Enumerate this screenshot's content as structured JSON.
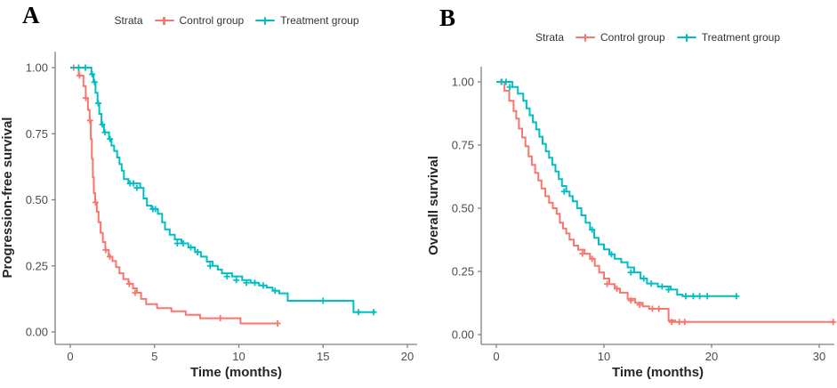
{
  "colors": {
    "control": "#F8766D",
    "treatment": "#00BFC4",
    "axis_line": "#808080",
    "tick_text": "#4d4d4d",
    "axis_title_text": "#262626"
  },
  "panels": [
    {
      "label": "A",
      "legend": {
        "title": "Strata",
        "items": [
          {
            "label": "Control group",
            "color_key": "control"
          },
          {
            "label": "Treatment group",
            "color_key": "treatment"
          }
        ]
      }
    },
    {
      "label": "B",
      "legend": {
        "title": "Strata",
        "items": [
          {
            "label": "Control group",
            "color_key": "control"
          },
          {
            "label": "Treatment group",
            "color_key": "treatment"
          }
        ]
      }
    }
  ],
  "chart_data": [
    {
      "type": "line",
      "subtype": "kaplan-meier-step",
      "panel": "A",
      "title": "",
      "xlabel": "Time (months)",
      "ylabel": "Progression-free survival",
      "xlim": [
        0,
        20
      ],
      "ylim": [
        0,
        1.0
      ],
      "xticks": [
        0,
        5,
        10,
        15,
        20
      ],
      "xtick_labels": [
        "0",
        "5",
        "10",
        "15",
        "20"
      ],
      "yticks": [
        0,
        0.25,
        0.5,
        0.75,
        1.0
      ],
      "ytick_labels": [
        "0.00",
        "0.25",
        "0.50",
        "0.75",
        "1.00"
      ],
      "grid": false,
      "legend_title": "Strata",
      "legend_position": "top",
      "series": [
        {
          "name": "Control group",
          "color": "#F8766D",
          "steps": [
            [
              0,
              1.0
            ],
            [
              0.5,
              0.97
            ],
            [
              0.78,
              0.93
            ],
            [
              0.92,
              0.885
            ],
            [
              1.05,
              0.84
            ],
            [
              1.15,
              0.8
            ],
            [
              1.22,
              0.73
            ],
            [
              1.28,
              0.655
            ],
            [
              1.34,
              0.585
            ],
            [
              1.4,
              0.525
            ],
            [
              1.48,
              0.49
            ],
            [
              1.58,
              0.455
            ],
            [
              1.68,
              0.415
            ],
            [
              1.8,
              0.375
            ],
            [
              1.93,
              0.34
            ],
            [
              2.08,
              0.31
            ],
            [
              2.28,
              0.285
            ],
            [
              2.5,
              0.268
            ],
            [
              2.72,
              0.245
            ],
            [
              2.92,
              0.222
            ],
            [
              3.15,
              0.2
            ],
            [
              3.45,
              0.182
            ],
            [
              3.72,
              0.165
            ],
            [
              3.95,
              0.148
            ],
            [
              4.2,
              0.125
            ],
            [
              4.5,
              0.105
            ],
            [
              5.15,
              0.09
            ],
            [
              6.0,
              0.078
            ],
            [
              6.85,
              0.065
            ],
            [
              7.7,
              0.052
            ],
            [
              10.1,
              0.032
            ],
            [
              12.35,
              0.032
            ]
          ],
          "censors": [
            [
              0.2,
              1.0
            ],
            [
              0.55,
              0.97
            ],
            [
              0.92,
              0.885
            ],
            [
              1.17,
              0.8
            ],
            [
              1.5,
              0.49
            ],
            [
              2.1,
              0.31
            ],
            [
              2.35,
              0.285
            ],
            [
              3.5,
              0.182
            ],
            [
              3.85,
              0.148
            ],
            [
              8.9,
              0.052
            ],
            [
              12.3,
              0.032
            ]
          ]
        },
        {
          "name": "Treatment group",
          "color": "#00BFC4",
          "steps": [
            [
              0,
              1.0
            ],
            [
              1.25,
              0.975
            ],
            [
              1.38,
              0.945
            ],
            [
              1.5,
              0.905
            ],
            [
              1.62,
              0.865
            ],
            [
              1.72,
              0.825
            ],
            [
              1.85,
              0.785
            ],
            [
              2.0,
              0.755
            ],
            [
              2.3,
              0.73
            ],
            [
              2.45,
              0.705
            ],
            [
              2.6,
              0.685
            ],
            [
              2.78,
              0.66
            ],
            [
              2.92,
              0.635
            ],
            [
              3.05,
              0.61
            ],
            [
              3.18,
              0.578
            ],
            [
              3.45,
              0.562
            ],
            [
              4.15,
              0.545
            ],
            [
              4.35,
              0.505
            ],
            [
              4.55,
              0.478
            ],
            [
              4.82,
              0.465
            ],
            [
              5.2,
              0.447
            ],
            [
              5.45,
              0.415
            ],
            [
              5.62,
              0.388
            ],
            [
              5.9,
              0.368
            ],
            [
              6.2,
              0.35
            ],
            [
              6.6,
              0.335
            ],
            [
              7.0,
              0.32
            ],
            [
              7.4,
              0.302
            ],
            [
              7.75,
              0.285
            ],
            [
              8.1,
              0.266
            ],
            [
              8.45,
              0.25
            ],
            [
              8.75,
              0.236
            ],
            [
              9.0,
              0.222
            ],
            [
              9.6,
              0.21
            ],
            [
              10.2,
              0.196
            ],
            [
              10.7,
              0.186
            ],
            [
              11.2,
              0.176
            ],
            [
              11.65,
              0.168
            ],
            [
              12.0,
              0.156
            ],
            [
              12.4,
              0.146
            ],
            [
              12.9,
              0.118
            ],
            [
              16.8,
              0.075
            ],
            [
              18.1,
              0.075
            ]
          ],
          "censors": [
            [
              0.5,
              1.0
            ],
            [
              0.9,
              1.0
            ],
            [
              1.3,
              0.975
            ],
            [
              1.44,
              0.945
            ],
            [
              1.66,
              0.865
            ],
            [
              1.9,
              0.785
            ],
            [
              2.06,
              0.755
            ],
            [
              2.36,
              0.73
            ],
            [
              3.55,
              0.562
            ],
            [
              3.75,
              0.562
            ],
            [
              3.95,
              0.545
            ],
            [
              4.9,
              0.465
            ],
            [
              5.05,
              0.465
            ],
            [
              6.35,
              0.335
            ],
            [
              6.7,
              0.335
            ],
            [
              7.15,
              0.32
            ],
            [
              7.55,
              0.302
            ],
            [
              8.3,
              0.25
            ],
            [
              9.3,
              0.21
            ],
            [
              9.85,
              0.196
            ],
            [
              10.45,
              0.186
            ],
            [
              10.95,
              0.186
            ],
            [
              11.45,
              0.176
            ],
            [
              12.15,
              0.156
            ],
            [
              15.0,
              0.118
            ],
            [
              17.1,
              0.075
            ],
            [
              18.0,
              0.075
            ]
          ]
        }
      ]
    },
    {
      "type": "line",
      "subtype": "kaplan-meier-step",
      "panel": "B",
      "title": "",
      "xlabel": "Time (months)",
      "ylabel": "Overall survival",
      "xlim": [
        0,
        31.5
      ],
      "ylim": [
        0,
        1.0
      ],
      "xticks": [
        0,
        10,
        20,
        30
      ],
      "xtick_labels": [
        "0",
        "10",
        "20",
        "30"
      ],
      "yticks": [
        0,
        0.25,
        0.5,
        0.75,
        1.0
      ],
      "ytick_labels": [
        "0.00",
        "0.25",
        "0.50",
        "0.75",
        "1.00"
      ],
      "grid": false,
      "legend_title": "Strata",
      "legend_position": "top",
      "series": [
        {
          "name": "Control group",
          "color": "#F8766D",
          "steps": [
            [
              0,
              1.0
            ],
            [
              0.75,
              0.965
            ],
            [
              1.2,
              0.925
            ],
            [
              1.6,
              0.885
            ],
            [
              1.85,
              0.855
            ],
            [
              2.1,
              0.815
            ],
            [
              2.4,
              0.78
            ],
            [
              2.7,
              0.745
            ],
            [
              3.0,
              0.705
            ],
            [
              3.3,
              0.672
            ],
            [
              3.6,
              0.64
            ],
            [
              3.9,
              0.61
            ],
            [
              4.2,
              0.578
            ],
            [
              4.55,
              0.548
            ],
            [
              4.9,
              0.522
            ],
            [
              5.25,
              0.5
            ],
            [
              5.6,
              0.478
            ],
            [
              5.9,
              0.443
            ],
            [
              6.2,
              0.42
            ],
            [
              6.5,
              0.4
            ],
            [
              6.8,
              0.376
            ],
            [
              7.2,
              0.352
            ],
            [
              7.6,
              0.336
            ],
            [
              8.2,
              0.32
            ],
            [
              8.7,
              0.3
            ],
            [
              9.15,
              0.272
            ],
            [
              9.55,
              0.246
            ],
            [
              10.0,
              0.222
            ],
            [
              10.5,
              0.2
            ],
            [
              11.0,
              0.182
            ],
            [
              11.5,
              0.166
            ],
            [
              12.2,
              0.142
            ],
            [
              12.9,
              0.126
            ],
            [
              13.6,
              0.112
            ],
            [
              14.2,
              0.102
            ],
            [
              16.0,
              0.056
            ],
            [
              16.6,
              0.05
            ],
            [
              31.3,
              0.05
            ]
          ],
          "censors": [
            [
              0.45,
              1.0
            ],
            [
              8.0,
              0.32
            ],
            [
              8.9,
              0.3
            ],
            [
              10.3,
              0.2
            ],
            [
              11.2,
              0.182
            ],
            [
              12.5,
              0.135
            ],
            [
              13.3,
              0.118
            ],
            [
              14.5,
              0.102
            ],
            [
              15.1,
              0.102
            ],
            [
              16.3,
              0.05
            ],
            [
              17.0,
              0.05
            ],
            [
              17.5,
              0.05
            ],
            [
              31.3,
              0.05
            ]
          ]
        },
        {
          "name": "Treatment group",
          "color": "#00BFC4",
          "steps": [
            [
              0,
              1.0
            ],
            [
              1.5,
              0.98
            ],
            [
              2.0,
              0.953
            ],
            [
              2.5,
              0.925
            ],
            [
              2.8,
              0.895
            ],
            [
              3.1,
              0.868
            ],
            [
              3.4,
              0.84
            ],
            [
              3.7,
              0.812
            ],
            [
              4.0,
              0.783
            ],
            [
              4.3,
              0.755
            ],
            [
              4.6,
              0.725
            ],
            [
              4.9,
              0.7
            ],
            [
              5.2,
              0.672
            ],
            [
              5.5,
              0.645
            ],
            [
              5.8,
              0.615
            ],
            [
              6.1,
              0.588
            ],
            [
              6.5,
              0.566
            ],
            [
              6.8,
              0.548
            ],
            [
              7.1,
              0.527
            ],
            [
              7.5,
              0.5
            ],
            [
              7.9,
              0.472
            ],
            [
              8.3,
              0.443
            ],
            [
              8.7,
              0.415
            ],
            [
              9.1,
              0.383
            ],
            [
              9.5,
              0.357
            ],
            [
              10.0,
              0.337
            ],
            [
              10.5,
              0.318
            ],
            [
              11.0,
              0.3
            ],
            [
              11.6,
              0.286
            ],
            [
              12.2,
              0.266
            ],
            [
              12.8,
              0.246
            ],
            [
              13.4,
              0.222
            ],
            [
              14.0,
              0.202
            ],
            [
              15.0,
              0.19
            ],
            [
              16.2,
              0.178
            ],
            [
              16.8,
              0.158
            ],
            [
              17.3,
              0.152
            ],
            [
              22.4,
              0.152
            ]
          ],
          "censors": [
            [
              0.5,
              1.0
            ],
            [
              0.9,
              1.0
            ],
            [
              1.25,
              0.98
            ],
            [
              6.3,
              0.566
            ],
            [
              8.9,
              0.415
            ],
            [
              10.7,
              0.318
            ],
            [
              12.5,
              0.246
            ],
            [
              13.7,
              0.222
            ],
            [
              14.4,
              0.202
            ],
            [
              15.4,
              0.19
            ],
            [
              16.0,
              0.178
            ],
            [
              17.6,
              0.152
            ],
            [
              18.3,
              0.152
            ],
            [
              18.9,
              0.152
            ],
            [
              19.6,
              0.152
            ],
            [
              22.3,
              0.152
            ]
          ]
        }
      ]
    }
  ]
}
